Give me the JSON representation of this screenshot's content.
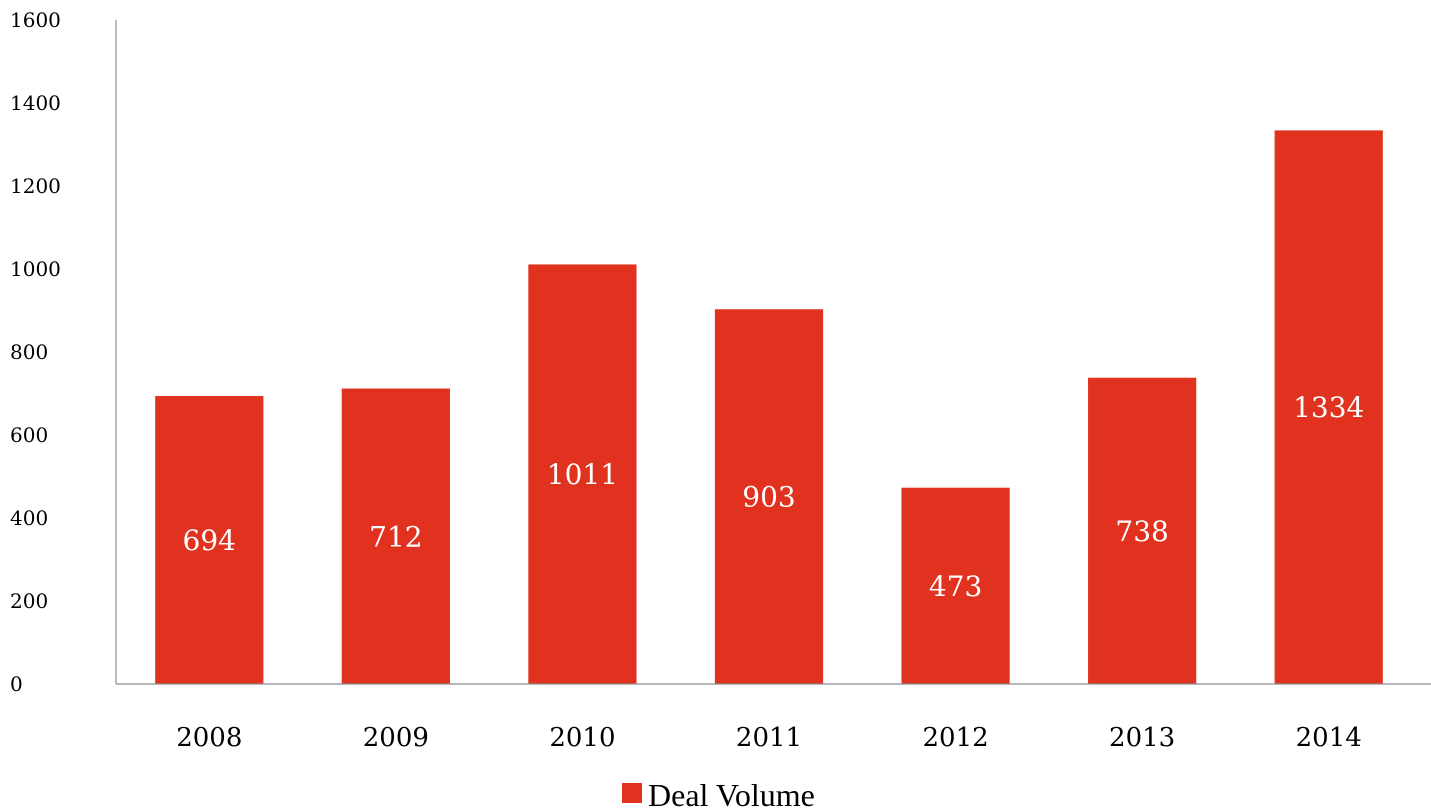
{
  "chart_data": {
    "type": "bar",
    "title": "",
    "xlabel": "",
    "ylabel": "",
    "categories": [
      "2008",
      "2009",
      "2010",
      "2011",
      "2012",
      "2013",
      "2014"
    ],
    "series": [
      {
        "name": "Deal Volume",
        "values": [
          694,
          712,
          1011,
          903,
          473,
          738,
          1334
        ],
        "color": "#e0321f"
      }
    ],
    "data_labels": [
      "694",
      "712",
      "1011",
      "903",
      "473",
      "738",
      "1334"
    ],
    "ylim": [
      0,
      1600
    ],
    "yticks": [
      "0",
      "200",
      "400",
      "600",
      "800",
      "1000",
      "1200",
      "1400",
      "1600"
    ],
    "grid": false,
    "legend": {
      "position": "bottom-center",
      "entries": [
        "Deal Volume"
      ]
    }
  },
  "colors": {
    "bar": "#e0321f",
    "axis": "#8c8c8c",
    "label_inside": "#ffffff"
  }
}
